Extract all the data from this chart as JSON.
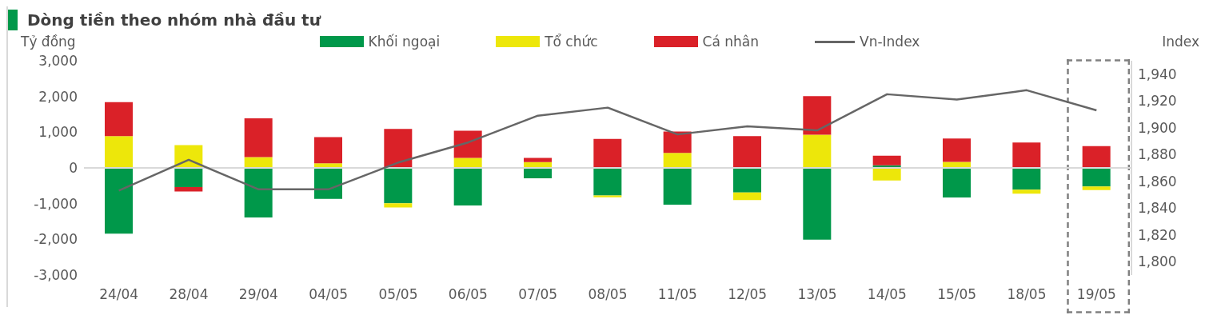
{
  "chart_data": {
    "type": "bar",
    "title": "Dòng tiền theo nhóm nhà đầu tư",
    "ylabel": "Tỷ đồng",
    "y2label": "Index",
    "categories": [
      "24/04",
      "28/04",
      "29/04",
      "04/05",
      "05/05",
      "06/05",
      "07/05",
      "08/05",
      "11/05",
      "12/05",
      "13/05",
      "14/05",
      "15/05",
      "18/05",
      "19/05"
    ],
    "series": [
      {
        "name": "Khối ngoại",
        "color": "#00984a",
        "values": [
          -1840,
          -540,
          -1390,
          -870,
          -990,
          -1050,
          -290,
          -770,
          -1030,
          -690,
          -2010,
          70,
          -830,
          -610,
          -520
        ]
      },
      {
        "name": "Tổ chức",
        "color": "#ede70a",
        "values": [
          890,
          640,
          300,
          130,
          -120,
          280,
          160,
          -50,
          420,
          -210,
          930,
          -350,
          170,
          -110,
          -100
        ]
      },
      {
        "name": "Cá nhân",
        "color": "#da2128",
        "values": [
          950,
          -120,
          1090,
          730,
          1090,
          760,
          120,
          810,
          600,
          890,
          1080,
          270,
          650,
          710,
          610
        ]
      },
      {
        "name": "Vn-Index",
        "type": "line",
        "axis": "y2",
        "color": "#666666",
        "values": [
          1853,
          1876,
          1854,
          1854,
          1874,
          1889,
          1909,
          1915,
          1895,
          1901,
          1898,
          1925,
          1921,
          1928,
          1913
        ]
      }
    ],
    "stacked": true,
    "ylim": [
      -3000,
      3000
    ],
    "yticks": [
      {
        "value": -3000,
        "label": "-3,000"
      },
      {
        "value": -2000,
        "label": "-2,000"
      },
      {
        "value": -1000,
        "label": "-1,000"
      },
      0,
      {
        "value": 1000,
        "label": "1,000"
      },
      {
        "value": 2000,
        "label": "2,000"
      },
      {
        "value": 3000,
        "label": "3,000"
      }
    ],
    "y2lim": [
      1790,
      1950
    ],
    "y2ticks": [
      {
        "value": 1800,
        "label": "1,800"
      },
      {
        "value": 1820,
        "label": "1,820"
      },
      {
        "value": 1840,
        "label": "1,840"
      },
      {
        "value": 1860,
        "label": "1,860"
      },
      {
        "value": 1880,
        "label": "1,880"
      },
      {
        "value": 1900,
        "label": "1,900"
      },
      {
        "value": 1920,
        "label": "1,920"
      },
      {
        "value": 1940,
        "label": "1,940"
      }
    ],
    "ref_lines": [
      {
        "axis": "y",
        "value": 0,
        "color": "#d9d9d9"
      }
    ],
    "legend": "top",
    "grid": false,
    "marker": "none",
    "line_style": "solid"
  }
}
